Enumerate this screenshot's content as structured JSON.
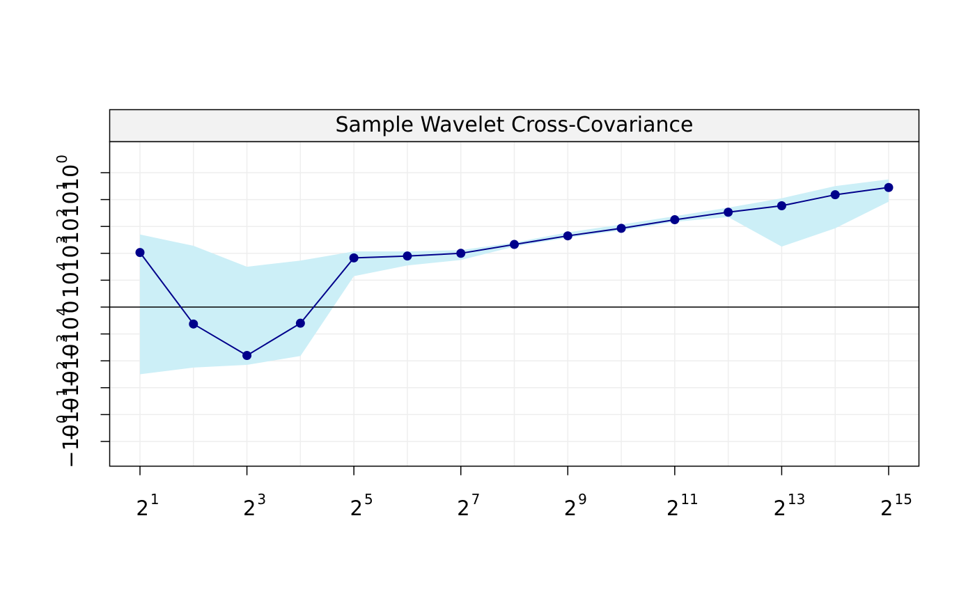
{
  "chart_data": {
    "type": "line",
    "title": "Sample Wavelet Cross-Covariance",
    "x_scale": "log2",
    "x": [
      2,
      4,
      8,
      16,
      32,
      64,
      128,
      256,
      512,
      1024,
      2048,
      4096,
      8192,
      16384,
      32768
    ],
    "x_tick_labels": [
      {
        "base": "2",
        "exp": "1"
      },
      {
        "base": "2",
        "exp": "3"
      },
      {
        "base": "2",
        "exp": "5"
      },
      {
        "base": "2",
        "exp": "7"
      },
      {
        "base": "2",
        "exp": "9"
      },
      {
        "base": "2",
        "exp": "11"
      },
      {
        "base": "2",
        "exp": "13"
      },
      {
        "base": "2",
        "exp": "15"
      }
    ],
    "y_scale": "signed log10",
    "y_tick_labels": [
      {
        "sign": "−",
        "base": "10",
        "exp": "0"
      },
      {
        "sign": "−",
        "base": "10",
        "exp": "1"
      },
      {
        "sign": "−",
        "base": "10",
        "exp": "2"
      },
      {
        "sign": "−",
        "base": "10",
        "exp": "3"
      },
      {
        "sign": "−",
        "base": "10",
        "exp": "4"
      },
      {
        "sign": "",
        "base": "0",
        "exp": ""
      },
      {
        "sign": "",
        "base": "10",
        "exp": "4"
      },
      {
        "sign": "",
        "base": "10",
        "exp": "3"
      },
      {
        "sign": "",
        "base": "10",
        "exp": "2"
      },
      {
        "sign": "",
        "base": "10",
        "exp": "1"
      },
      {
        "sign": "",
        "base": "10",
        "exp": "0"
      }
    ],
    "ylim": [
      -5.9,
      6.2
    ],
    "y_log_values": [
      2.03,
      -0.63,
      -1.8,
      -0.6,
      1.83,
      1.9,
      2.0,
      2.33,
      2.65,
      2.93,
      3.25,
      3.53,
      3.77,
      4.18,
      4.45
    ],
    "ci_upper": [
      2.7,
      2.28,
      1.5,
      1.73,
      2.07,
      2.07,
      2.12,
      2.4,
      2.78,
      3.07,
      3.38,
      3.7,
      4.05,
      4.5,
      4.75
    ],
    "ci_lower": [
      -2.5,
      -2.25,
      -2.15,
      -1.82,
      1.15,
      1.55,
      1.75,
      2.25,
      2.58,
      2.85,
      3.17,
      3.35,
      2.25,
      2.93,
      3.92
    ],
    "reference_line_y": 0,
    "grid": true,
    "colors": {
      "line": "#00008B",
      "points": "#00008B",
      "ci_band": "#CCEFF7",
      "grid": "#EEEEEE",
      "strip_bg": "#F2F2F2",
      "axis": "#000000"
    }
  }
}
